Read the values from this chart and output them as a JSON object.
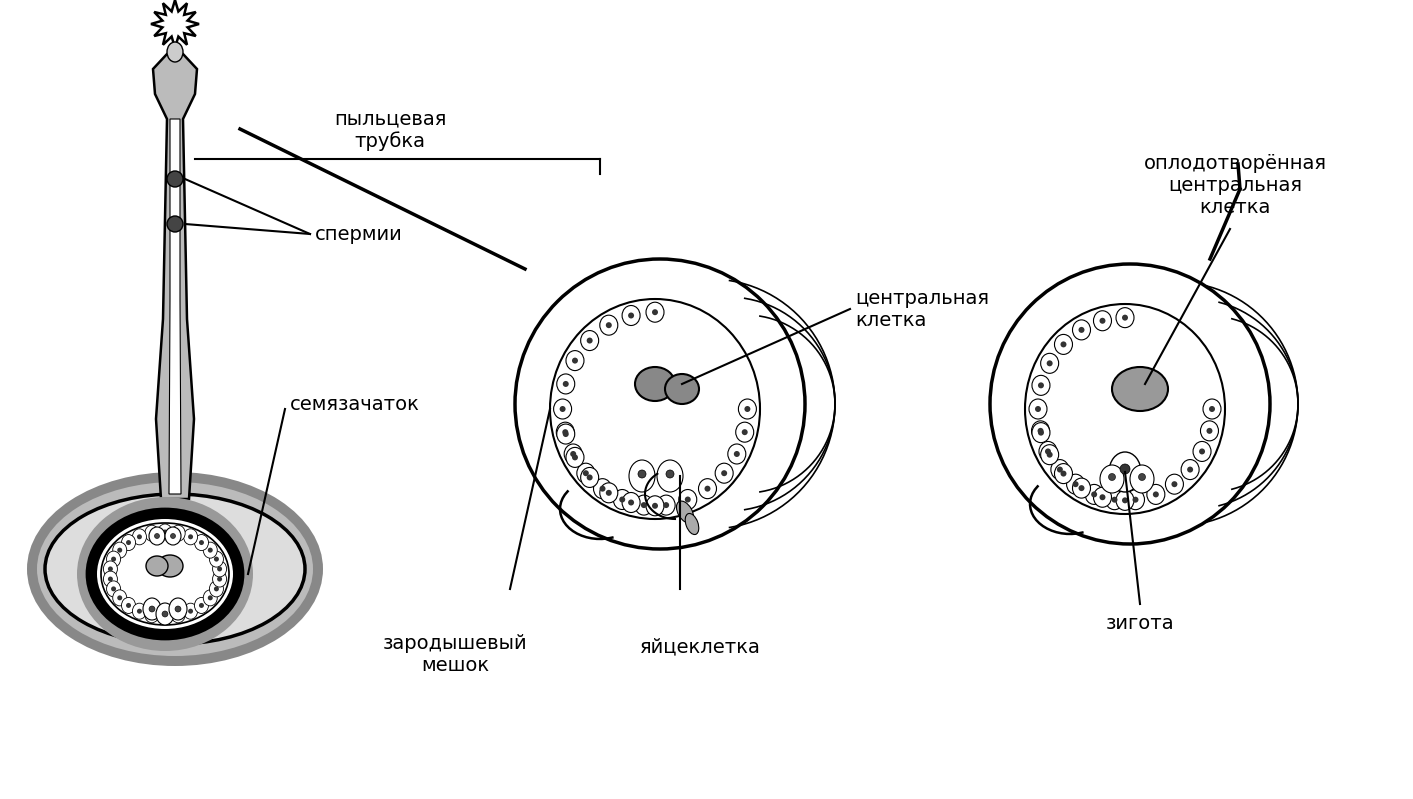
{
  "bg_color": "#ffffff",
  "labels": {
    "pyltsevaya_trubka": "пыльцевая\nтрубка",
    "spermii": "спермии",
    "semyazachatok": "семязачаток",
    "zarodyshevyi_meshok": "зародышевый\nмешок",
    "yaytskletka": "яйцеклетка",
    "tsentralnaya_kletka": "центральная\nклетка",
    "oplodotvorennaya": "оплодотворённая\nцентральная\nклетка",
    "zigota": "зигота"
  },
  "font_size_labels": 14,
  "line_color": "#000000",
  "gray1": "#aaaaaa",
  "gray2": "#cccccc",
  "gray3": "#888888",
  "gray4": "#555555",
  "gray_dark": "#333333"
}
